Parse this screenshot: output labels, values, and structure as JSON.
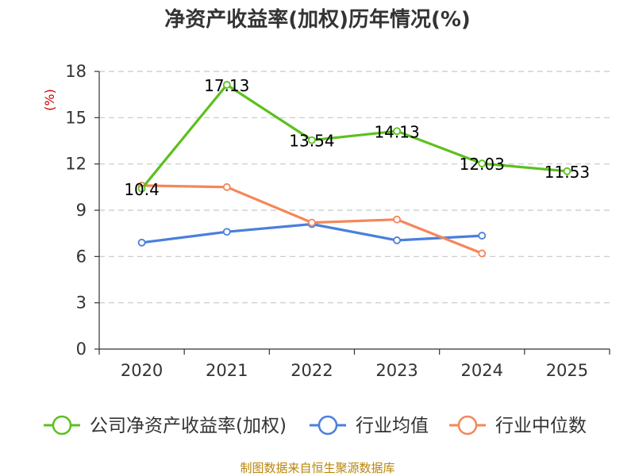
{
  "chart_data": {
    "type": "line",
    "title": "净资产收益率(加权)历年情况(%)",
    "ylabel": "(%)",
    "xlabel": "",
    "categories": [
      "2020",
      "2021",
      "2022",
      "2023",
      "2024",
      "2025"
    ],
    "ylim": [
      0,
      18
    ],
    "yticks": [
      0,
      3,
      6,
      9,
      12,
      15,
      18
    ],
    "grid": true,
    "legend_position": "bottom",
    "series": [
      {
        "name": "公司净资产收益率(加权)",
        "color": "#5cc01f",
        "values": [
          10.4,
          17.13,
          13.54,
          14.13,
          12.03,
          11.53
        ],
        "labels": [
          "10.4",
          "17.13",
          "13.54",
          "14.13",
          "12.03",
          "11.53"
        ]
      },
      {
        "name": "行业均值",
        "color": "#4a7fdc",
        "values": [
          6.9,
          7.6,
          8.1,
          7.05,
          7.35,
          null
        ]
      },
      {
        "name": "行业中位数",
        "color": "#f4875a",
        "values": [
          10.6,
          10.5,
          8.2,
          8.4,
          6.2,
          null
        ]
      }
    ]
  },
  "footer": {
    "source": "制图数据来自恒生聚源数据库"
  }
}
